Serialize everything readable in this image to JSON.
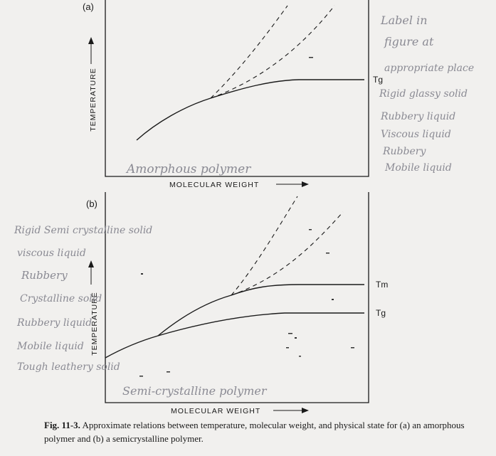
{
  "panel_a": {
    "tag": "(a)",
    "y_label": "TEMPERATURE",
    "x_label": "MOLECULAR WEIGHT",
    "curve_label_tg": "Tg",
    "handwritten_title": "Amorphous polymer",
    "handwritten_notes": [
      "Label in",
      "figure at",
      "appropriate place",
      "Rigid glassy solid",
      "Rubbery liquid",
      "Viscous liquid",
      "Rubbery",
      "Mobile liquid"
    ]
  },
  "panel_b": {
    "tag": "(b)",
    "y_label": "TEMPERATURE",
    "x_label": "MOLECULAR WEIGHT",
    "curve_label_tm": "Tm",
    "curve_label_tg": "Tg",
    "handwritten_title": "Semi-crystalline polymer",
    "handwritten_notes": [
      "Rigid Semi crystalline solid",
      "viscous liquid",
      "Rubbery",
      "Crystalline solid",
      "Rubbery liquid",
      "Mobile liquid",
      "Tough leathery solid"
    ]
  },
  "caption": {
    "fig_number": "Fig. 11-3.",
    "text": "Approximate relations between temperature, molecular weight, and physical state for (a) an amorphous polymer and (b) a semicrystalline polymer."
  }
}
